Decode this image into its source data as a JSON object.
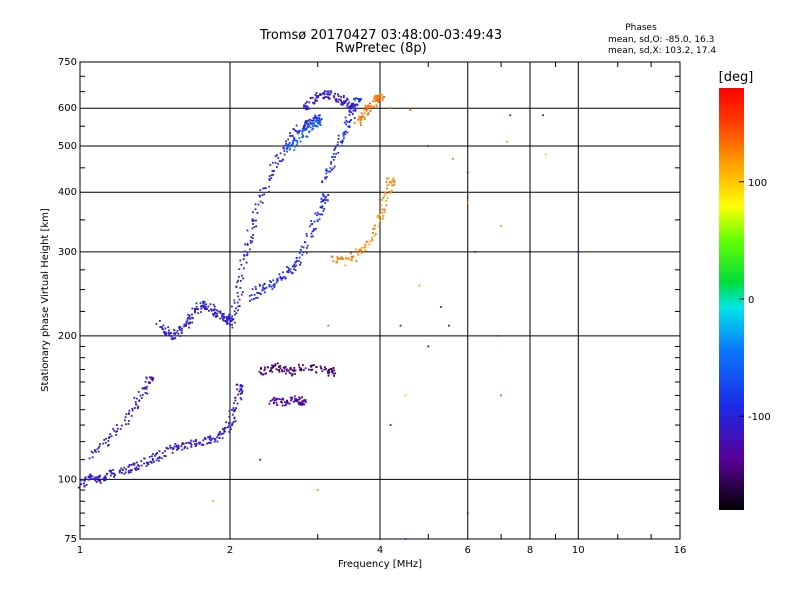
{
  "chart_data": {
    "type": "scatter",
    "title": "Tromsø 20170427 03:48:00-03:49:43",
    "subtitle": "RwPretec (8p)",
    "xlabel": "Frequency [MHz]",
    "ylabel": "Stationary phase Virtual Height [km]",
    "x_scale": "log",
    "y_scale": "log",
    "xlim": [
      1,
      16
    ],
    "ylim": [
      75,
      750
    ],
    "x_ticks": [
      1,
      2,
      4,
      6,
      8,
      10,
      16
    ],
    "x_tick_labels": [
      "1",
      "2",
      "4",
      "6",
      "8",
      "10",
      "16"
    ],
    "y_ticks": [
      75,
      100,
      200,
      300,
      400,
      500,
      600,
      750
    ],
    "y_tick_labels": [
      "75",
      "100",
      "200",
      "300",
      "400",
      "500",
      "600",
      "750"
    ],
    "grid": true,
    "legend": {
      "title": "Phases",
      "line1": "mean, sd,O: -85.0, 16.3",
      "line2": "mean, sd,X: 103.2, 17.4"
    },
    "colorbar": {
      "label": "[deg]",
      "range": [
        -180,
        180
      ],
      "ticks": [
        100,
        0,
        -100
      ],
      "tick_labels": [
        "100",
        "0",
        "-100"
      ]
    },
    "point_groups": [
      {
        "x": [
          1.0,
          1.04,
          1.08,
          1.12,
          1.17,
          1.22,
          1.28,
          1.34,
          1.4,
          1.47,
          1.55,
          1.62,
          1.7,
          1.78,
          1.86,
          1.93,
          2.0,
          2.05,
          2.1
        ],
        "y": [
          97,
          101,
          100,
          101,
          103,
          104,
          106,
          108,
          110,
          113,
          117,
          118,
          119,
          120,
          122,
          125,
          130,
          140,
          155
        ],
        "phase": -110
      },
      {
        "x": [
          1.06,
          1.12,
          1.2,
          1.27,
          1.33,
          1.38
        ],
        "y": [
          112,
          119,
          128,
          140,
          150,
          162
        ],
        "phase": -115
      },
      {
        "x": [
          1.45,
          1.5,
          1.55,
          1.6,
          1.65,
          1.7,
          1.75,
          1.8,
          1.85,
          1.9,
          1.95,
          2.0
        ],
        "y": [
          212,
          203,
          200,
          206,
          214,
          224,
          232,
          232,
          226,
          222,
          220,
          215
        ],
        "phase": -105
      },
      {
        "x": [
          2.0,
          2.05,
          2.1,
          2.15,
          2.2,
          2.3,
          2.4,
          2.5,
          2.6,
          2.7,
          2.8,
          2.9,
          3.0
        ],
        "y": [
          210,
          230,
          260,
          300,
          330,
          380,
          430,
          470,
          500,
          530,
          550,
          560,
          570
        ],
        "phase": -100
      },
      {
        "x": [
          2.2,
          2.3,
          2.4,
          2.5,
          2.6,
          2.7,
          2.8,
          2.9,
          3.0,
          3.1
        ],
        "y": [
          240,
          250,
          255,
          262,
          270,
          280,
          300,
          330,
          360,
          390
        ],
        "phase": -95
      },
      {
        "x": [
          2.8,
          2.9,
          3.0,
          3.1,
          3.2,
          3.3,
          3.4,
          3.5
        ],
        "y": [
          600,
          620,
          640,
          640,
          640,
          630,
          620,
          600
        ],
        "phase": -110
      },
      {
        "x": [
          3.1,
          3.2,
          3.3,
          3.4,
          3.5,
          3.6
        ],
        "y": [
          420,
          460,
          500,
          540,
          580,
          620
        ],
        "phase": -90
      },
      {
        "x": [
          2.3,
          2.4,
          2.5,
          2.6,
          2.7,
          2.8,
          3.0,
          3.2
        ],
        "y": [
          168,
          170,
          172,
          170,
          168,
          172,
          170,
          168
        ],
        "phase": -150
      },
      {
        "x": [
          2.4,
          2.5,
          2.6,
          2.7,
          2.8
        ],
        "y": [
          147,
          146,
          145,
          147,
          146
        ],
        "phase": -130
      },
      {
        "x": [
          3.2,
          3.4,
          3.6,
          3.8,
          4.0,
          4.1,
          4.2
        ],
        "y": [
          290,
          285,
          295,
          315,
          350,
          380,
          420
        ],
        "phase": 125
      },
      {
        "x": [
          3.6,
          3.7,
          3.8,
          3.9,
          4.0
        ],
        "y": [
          560,
          580,
          600,
          620,
          630
        ],
        "phase": 130
      },
      {
        "x": [
          2.6,
          2.7,
          2.8,
          2.9,
          3.0
        ],
        "y": [
          490,
          510,
          530,
          550,
          560
        ],
        "phase": -60
      }
    ],
    "scatter_points": [
      {
        "x": 4.2,
        "y": 600,
        "phase": 140
      },
      {
        "x": 4.6,
        "y": 595,
        "phase": 135
      },
      {
        "x": 5.0,
        "y": 500,
        "phase": -90
      },
      {
        "x": 5.6,
        "y": 470,
        "phase": 130
      },
      {
        "x": 6.0,
        "y": 380,
        "phase": 125
      },
      {
        "x": 6.0,
        "y": 440,
        "phase": -100
      },
      {
        "x": 6.2,
        "y": 300,
        "phase": -110
      },
      {
        "x": 7.0,
        "y": 340,
        "phase": 115
      },
      {
        "x": 7.2,
        "y": 510,
        "phase": 110
      },
      {
        "x": 7.3,
        "y": 580,
        "phase": -100
      },
      {
        "x": 8.5,
        "y": 580,
        "phase": -100
      },
      {
        "x": 8.6,
        "y": 480,
        "phase": 100
      },
      {
        "x": 10.0,
        "y": 300,
        "phase": -100
      },
      {
        "x": 4.8,
        "y": 255,
        "phase": 120
      },
      {
        "x": 5.3,
        "y": 230,
        "phase": -90
      },
      {
        "x": 5.5,
        "y": 210,
        "phase": -100
      },
      {
        "x": 4.4,
        "y": 210,
        "phase": -100
      },
      {
        "x": 6.0,
        "y": 200,
        "phase": -110
      },
      {
        "x": 6.9,
        "y": 200,
        "phase": -60
      },
      {
        "x": 7.0,
        "y": 150,
        "phase": 145
      },
      {
        "x": 5.0,
        "y": 190,
        "phase": -140
      },
      {
        "x": 6.0,
        "y": 85,
        "phase": -110
      },
      {
        "x": 4.5,
        "y": 150,
        "phase": 100
      },
      {
        "x": 4.2,
        "y": 130,
        "phase": -100
      },
      {
        "x": 2.3,
        "y": 110,
        "phase": -100
      },
      {
        "x": 1.85,
        "y": 90,
        "phase": 105
      },
      {
        "x": 3.0,
        "y": 95,
        "phase": 120
      },
      {
        "x": 3.15,
        "y": 210,
        "phase": 20
      },
      {
        "x": 4.0,
        "y": 75,
        "phase": -100
      },
      {
        "x": 4.5,
        "y": 75,
        "phase": -100
      }
    ]
  }
}
